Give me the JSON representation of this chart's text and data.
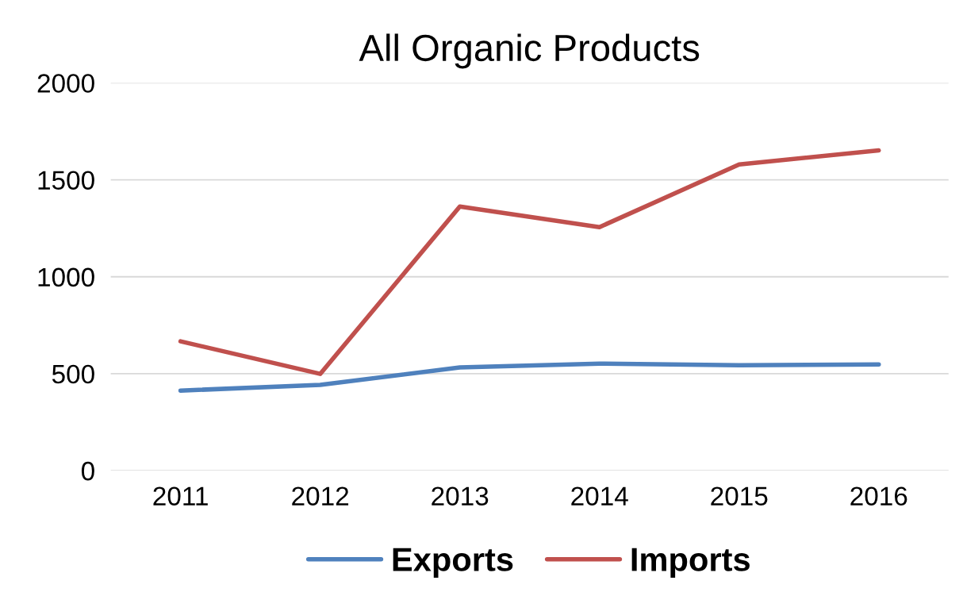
{
  "chart_data": {
    "type": "line",
    "title": "All Organic Products",
    "categories": [
      "2011",
      "2012",
      "2013",
      "2014",
      "2015",
      "2016"
    ],
    "series": [
      {
        "name": "Exports",
        "color": "#4f81bd",
        "values": [
          413,
          442,
          532,
          552,
          544,
          548
        ]
      },
      {
        "name": "Imports",
        "color": "#c0504d",
        "values": [
          667,
          499,
          1362,
          1256,
          1579,
          1652
        ]
      }
    ],
    "ylim": [
      0,
      2000
    ],
    "yticks": [
      0,
      500,
      1000,
      1500,
      2000
    ],
    "grid": "y",
    "legend": "bottom",
    "marker": "none",
    "line_style": "solid"
  }
}
